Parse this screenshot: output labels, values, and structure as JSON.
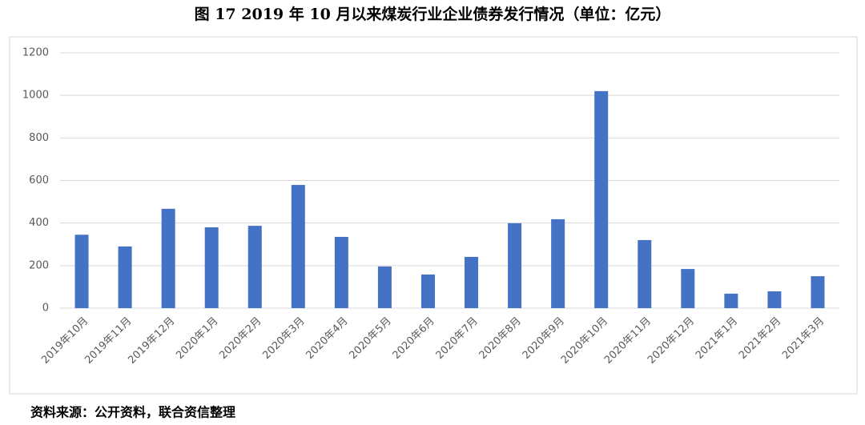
{
  "chart_data": {
    "type": "bar",
    "title": "图 17   2019 年 10 月以来煤炭行业企业债券发行情况（单位：亿元）",
    "categories": [
      "2019年10月",
      "2019年11月",
      "2019年12月",
      "2020年1月",
      "2020年2月",
      "2020年3月",
      "2020年4月",
      "2020年5月",
      "2020年6月",
      "2020年7月",
      "2020年8月",
      "2020年9月",
      "2020年10月",
      "2020年11月",
      "2020年12月",
      "2021年1月",
      "2021年2月",
      "2021年3月"
    ],
    "values": [
      345,
      290,
      467,
      380,
      387,
      579,
      335,
      196,
      158,
      241,
      399,
      418,
      1020,
      320,
      184,
      68,
      79,
      150
    ],
    "color": "#4472c4",
    "ylim": [
      0,
      1200
    ],
    "yticks": [
      0,
      200,
      400,
      600,
      800,
      1000,
      1200
    ],
    "grid": true,
    "source": "资料来源：公开资料，联合资信整理"
  }
}
